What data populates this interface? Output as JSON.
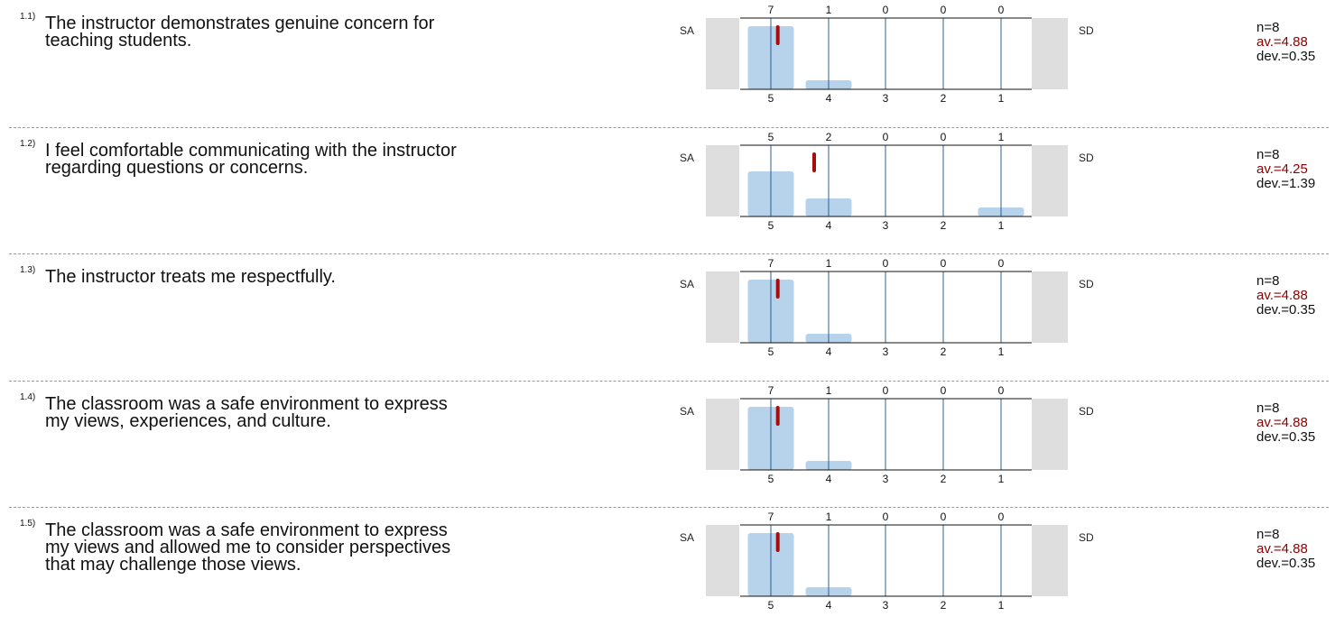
{
  "scale": {
    "left_label": "SA",
    "right_label": "SD",
    "tick_labels": [
      "5",
      "4",
      "3",
      "2",
      "1"
    ]
  },
  "colors": {
    "bar": "#b6d3eb",
    "gridline": "#2f5f8f",
    "average_marker": "#a50d0d",
    "side_panel": "#dedede",
    "average_text": "#8b0000"
  },
  "questions": [
    {
      "number": "1.1)",
      "lines": [
        "The instructor demonstrates genuine concern for",
        "teaching students."
      ],
      "counts": [
        7,
        1,
        0,
        0,
        0
      ],
      "n": "n=8",
      "average": "av.=4.88",
      "deviation": "dev.=0.35"
    },
    {
      "number": "1.2)",
      "lines": [
        "I feel comfortable communicating with the instructor",
        "regarding questions or concerns."
      ],
      "counts": [
        5,
        2,
        0,
        0,
        1
      ],
      "n": "n=8",
      "average": "av.=4.25",
      "deviation": "dev.=1.39"
    },
    {
      "number": "1.3)",
      "lines": [
        "The instructor treats me respectfully."
      ],
      "counts": [
        7,
        1,
        0,
        0,
        0
      ],
      "n": "n=8",
      "average": "av.=4.88",
      "deviation": "dev.=0.35"
    },
    {
      "number": "1.4)",
      "lines": [
        "The classroom was a safe environment to express",
        "my views, experiences, and culture."
      ],
      "counts": [
        7,
        1,
        0,
        0,
        0
      ],
      "n": "n=8",
      "average": "av.=4.88",
      "deviation": "dev.=0.35"
    },
    {
      "number": "1.5)",
      "lines": [
        "The classroom was a safe environment to express",
        "my views and allowed me to consider perspectives",
        "that may challenge those views."
      ],
      "counts": [
        7,
        1,
        0,
        0,
        0
      ],
      "n": "n=8",
      "average": "av.=4.88",
      "deviation": "dev.=0.35"
    }
  ],
  "chart_data": [
    {
      "type": "bar",
      "categories": [
        "5",
        "4",
        "3",
        "2",
        "1"
      ],
      "values": [
        7,
        1,
        0,
        0,
        0
      ],
      "average": 4.88,
      "left_label": "SA",
      "right_label": "SD"
    },
    {
      "type": "bar",
      "categories": [
        "5",
        "4",
        "3",
        "2",
        "1"
      ],
      "values": [
        5,
        2,
        0,
        0,
        1
      ],
      "average": 4.25,
      "left_label": "SA",
      "right_label": "SD"
    },
    {
      "type": "bar",
      "categories": [
        "5",
        "4",
        "3",
        "2",
        "1"
      ],
      "values": [
        7,
        1,
        0,
        0,
        0
      ],
      "average": 4.88,
      "left_label": "SA",
      "right_label": "SD"
    },
    {
      "type": "bar",
      "categories": [
        "5",
        "4",
        "3",
        "2",
        "1"
      ],
      "values": [
        7,
        1,
        0,
        0,
        0
      ],
      "average": 4.88,
      "left_label": "SA",
      "right_label": "SD"
    },
    {
      "type": "bar",
      "categories": [
        "5",
        "4",
        "3",
        "2",
        "1"
      ],
      "values": [
        7,
        1,
        0,
        0,
        0
      ],
      "average": 4.88,
      "left_label": "SA",
      "right_label": "SD"
    }
  ]
}
